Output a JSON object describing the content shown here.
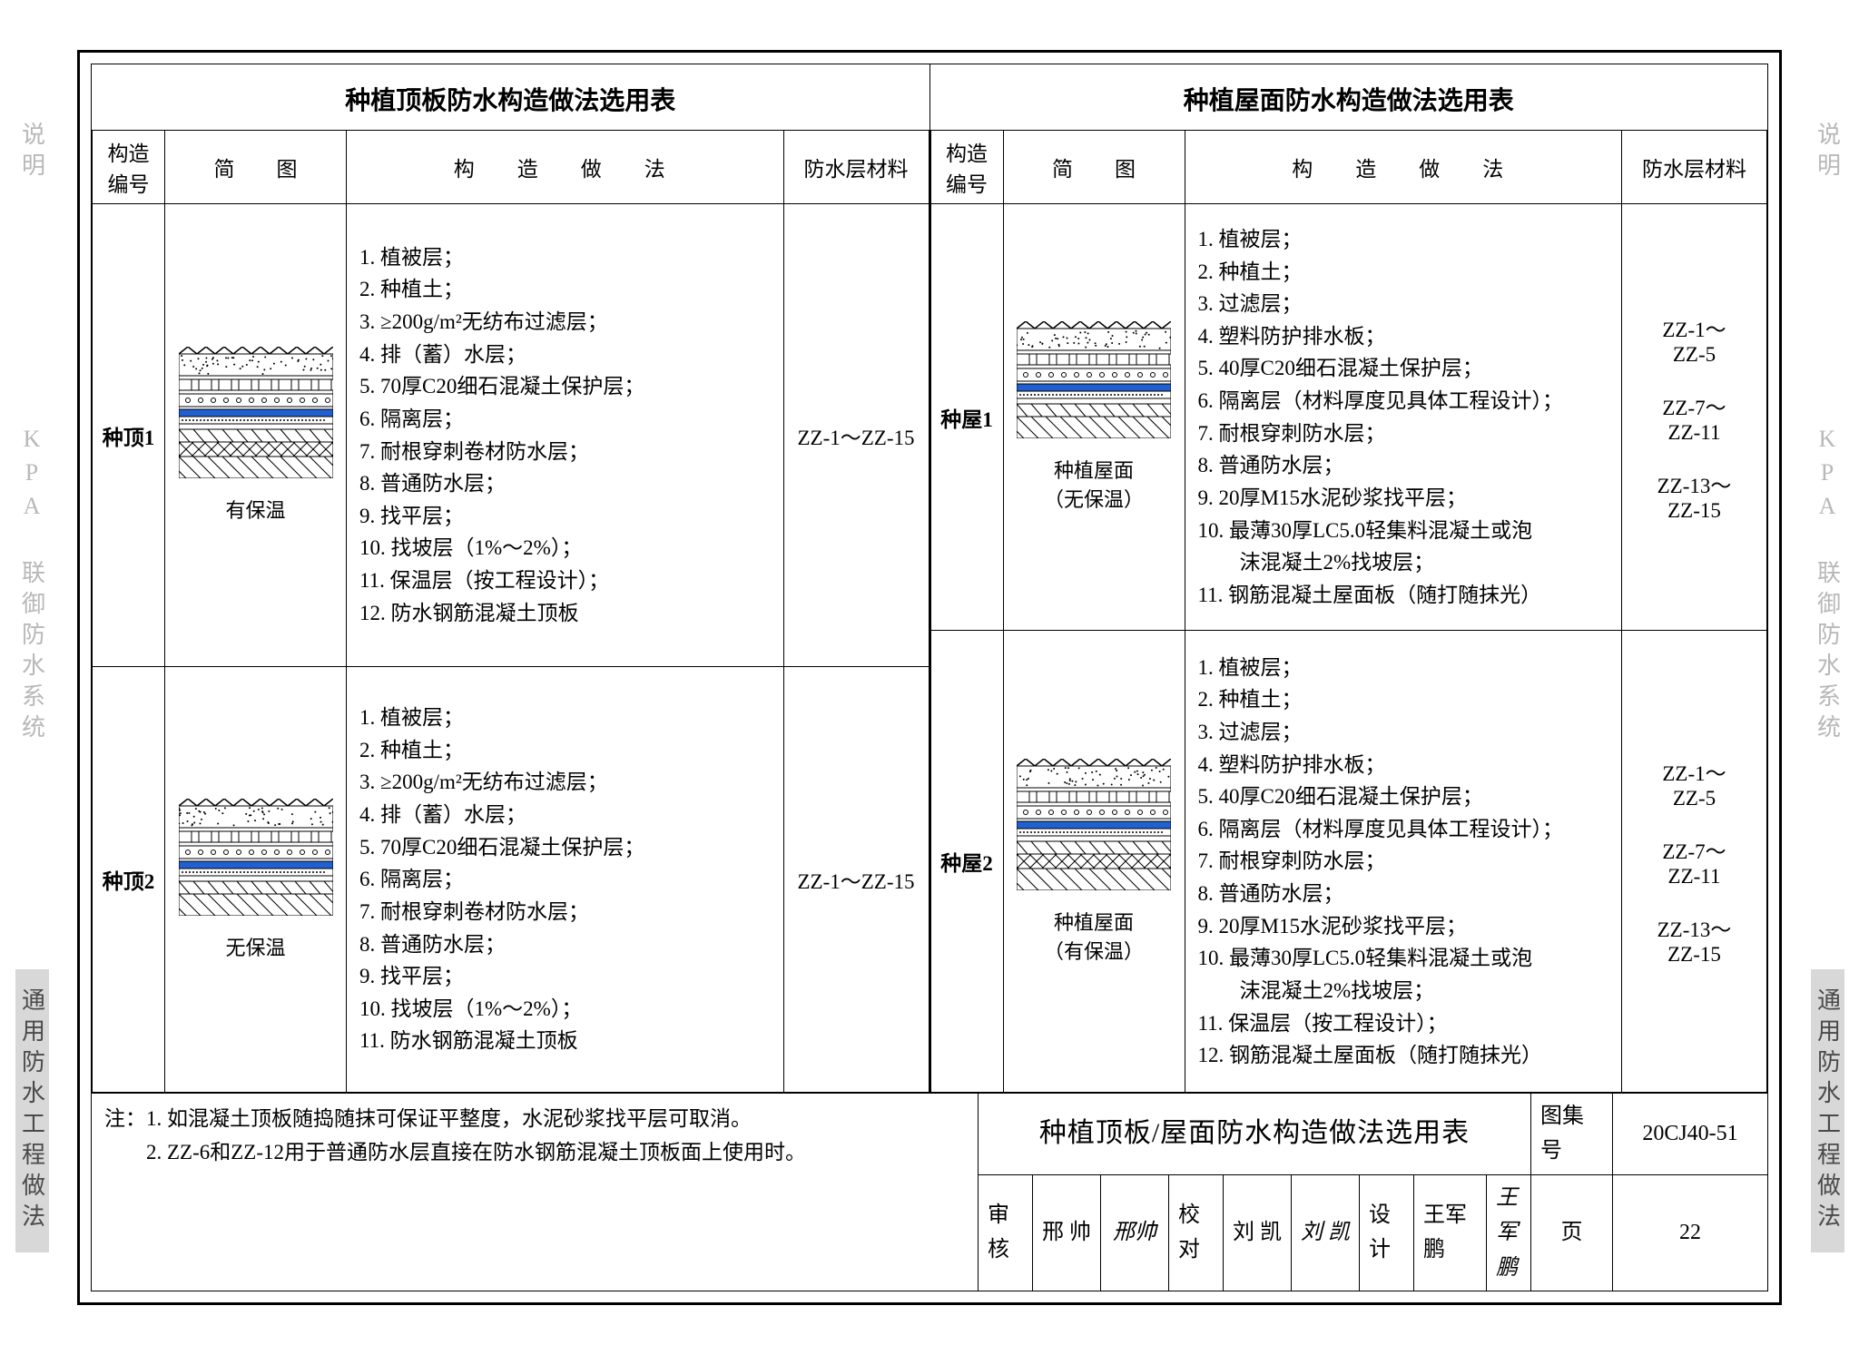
{
  "colors": {
    "border": "#000000",
    "background": "#ffffff",
    "side_inactive": "#b8b8b8",
    "side_active_bg": "#d8d8d8",
    "side_active_text": "#4a4a4a",
    "diagram_blue": "#2060d0",
    "diagram_soil": "#888888"
  },
  "side_labels": {
    "items": [
      "说明",
      "KPA 联御防水系统",
      "通用防水工程做法"
    ],
    "active_index": 2
  },
  "table_left": {
    "title": "种植顶板防水构造做法选用表",
    "headers": {
      "code": "构造编号",
      "diagram": "简　　图",
      "method": "构　造　做　法",
      "material": "防水层材料"
    },
    "header_spaced": {
      "method": true
    },
    "rows": [
      {
        "code": "种顶1",
        "diagram_caption": "有保温",
        "diagram_type": "insulated",
        "method": [
          "1. 植被层；",
          "2. 种植土；",
          "3. ≥200g/m²无纺布过滤层；",
          "4. 排（蓄）水层；",
          "5. 70厚C20细石混凝土保护层；",
          "6. 隔离层；",
          "7. 耐根穿刺卷材防水层；",
          "8. 普通防水层；",
          "9. 找平层；",
          "10. 找坡层（1%～2%）；",
          "11. 保温层（按工程设计）；",
          "12. 防水钢筋混凝土顶板"
        ],
        "material": "ZZ-1～ZZ-15"
      },
      {
        "code": "种顶2",
        "diagram_caption": "无保温",
        "diagram_type": "uninsulated",
        "method": [
          "1. 植被层；",
          "2. 种植土；",
          "3. ≥200g/m²无纺布过滤层；",
          "4. 排（蓄）水层；",
          "5. 70厚C20细石混凝土保护层；",
          "6. 隔离层；",
          "7. 耐根穿刺卷材防水层；",
          "8. 普通防水层；",
          "9. 找平层；",
          "10. 找坡层（1%～2%）；",
          "11. 防水钢筋混凝土顶板"
        ],
        "material": "ZZ-1～ZZ-15"
      }
    ]
  },
  "table_right": {
    "title": "种植屋面防水构造做法选用表",
    "headers": {
      "code": "构造编号",
      "diagram": "简　　图",
      "method": "构　造　做　法",
      "material": "防水层材料"
    },
    "rows": [
      {
        "code": "种屋1",
        "diagram_caption": "种植屋面\n（无保温）",
        "diagram_type": "roof-uninsulated",
        "method": [
          "1. 植被层；",
          "2. 种植土；",
          "3. 过滤层；",
          "4. 塑料防护排水板；",
          "5. 40厚C20细石混凝土保护层；",
          "6. 隔离层（材料厚度见具体工程设计）；",
          "7. 耐根穿刺防水层；",
          "8. 普通防水层；",
          "9. 20厚M15水泥砂浆找平层；",
          "10. 最薄30厚LC5.0轻集料混凝土或泡",
          "　　沫混凝土2%找坡层；",
          "11. 钢筋混凝土屋面板（随打随抹光）"
        ],
        "material": "ZZ-1～\nZZ-5\n\nZZ-7～\nZZ-11\n\nZZ-13～\nZZ-15"
      },
      {
        "code": "种屋2",
        "diagram_caption": "种植屋面\n（有保温）",
        "diagram_type": "roof-insulated",
        "method": [
          "1. 植被层；",
          "2. 种植土；",
          "3. 过滤层；",
          "4. 塑料防护排水板；",
          "5. 40厚C20细石混凝土保护层；",
          "6. 隔离层（材料厚度见具体工程设计）；",
          "7. 耐根穿刺防水层；",
          "8. 普通防水层；",
          "9. 20厚M15水泥砂浆找平层；",
          "10. 最薄30厚LC5.0轻集料混凝土或泡",
          "　　沫混凝土2%找坡层；",
          "11. 保温层（按工程设计）；",
          "12. 钢筋混凝土屋面板（随打随抹光）"
        ],
        "material": "ZZ-1～\nZZ-5\n\nZZ-7～\nZZ-11\n\nZZ-13～\nZZ-15"
      }
    ]
  },
  "notes": {
    "prefix": "注：",
    "items": [
      "1. 如混凝土顶板随捣随抹可保证平整度，水泥砂浆找平层可取消。",
      "2. ZZ-6和ZZ-12用于普通防水层直接在防水钢筋混凝土顶板面上使用时。"
    ]
  },
  "title_block": {
    "main": "种植顶板/屋面防水构造做法选用表",
    "atlas_label": "图集号",
    "atlas_no": "20CJ40-51",
    "row2": {
      "review_label": "审核",
      "review_name": "邢 帅",
      "review_sig": "邢帅",
      "check_label": "校对",
      "check_name": "刘 凯",
      "check_sig": "刘 凯",
      "design_label": "设计",
      "design_name": "王军鹏",
      "design_sig": "王军鹏",
      "page_label": "页",
      "page_no": "22"
    }
  }
}
